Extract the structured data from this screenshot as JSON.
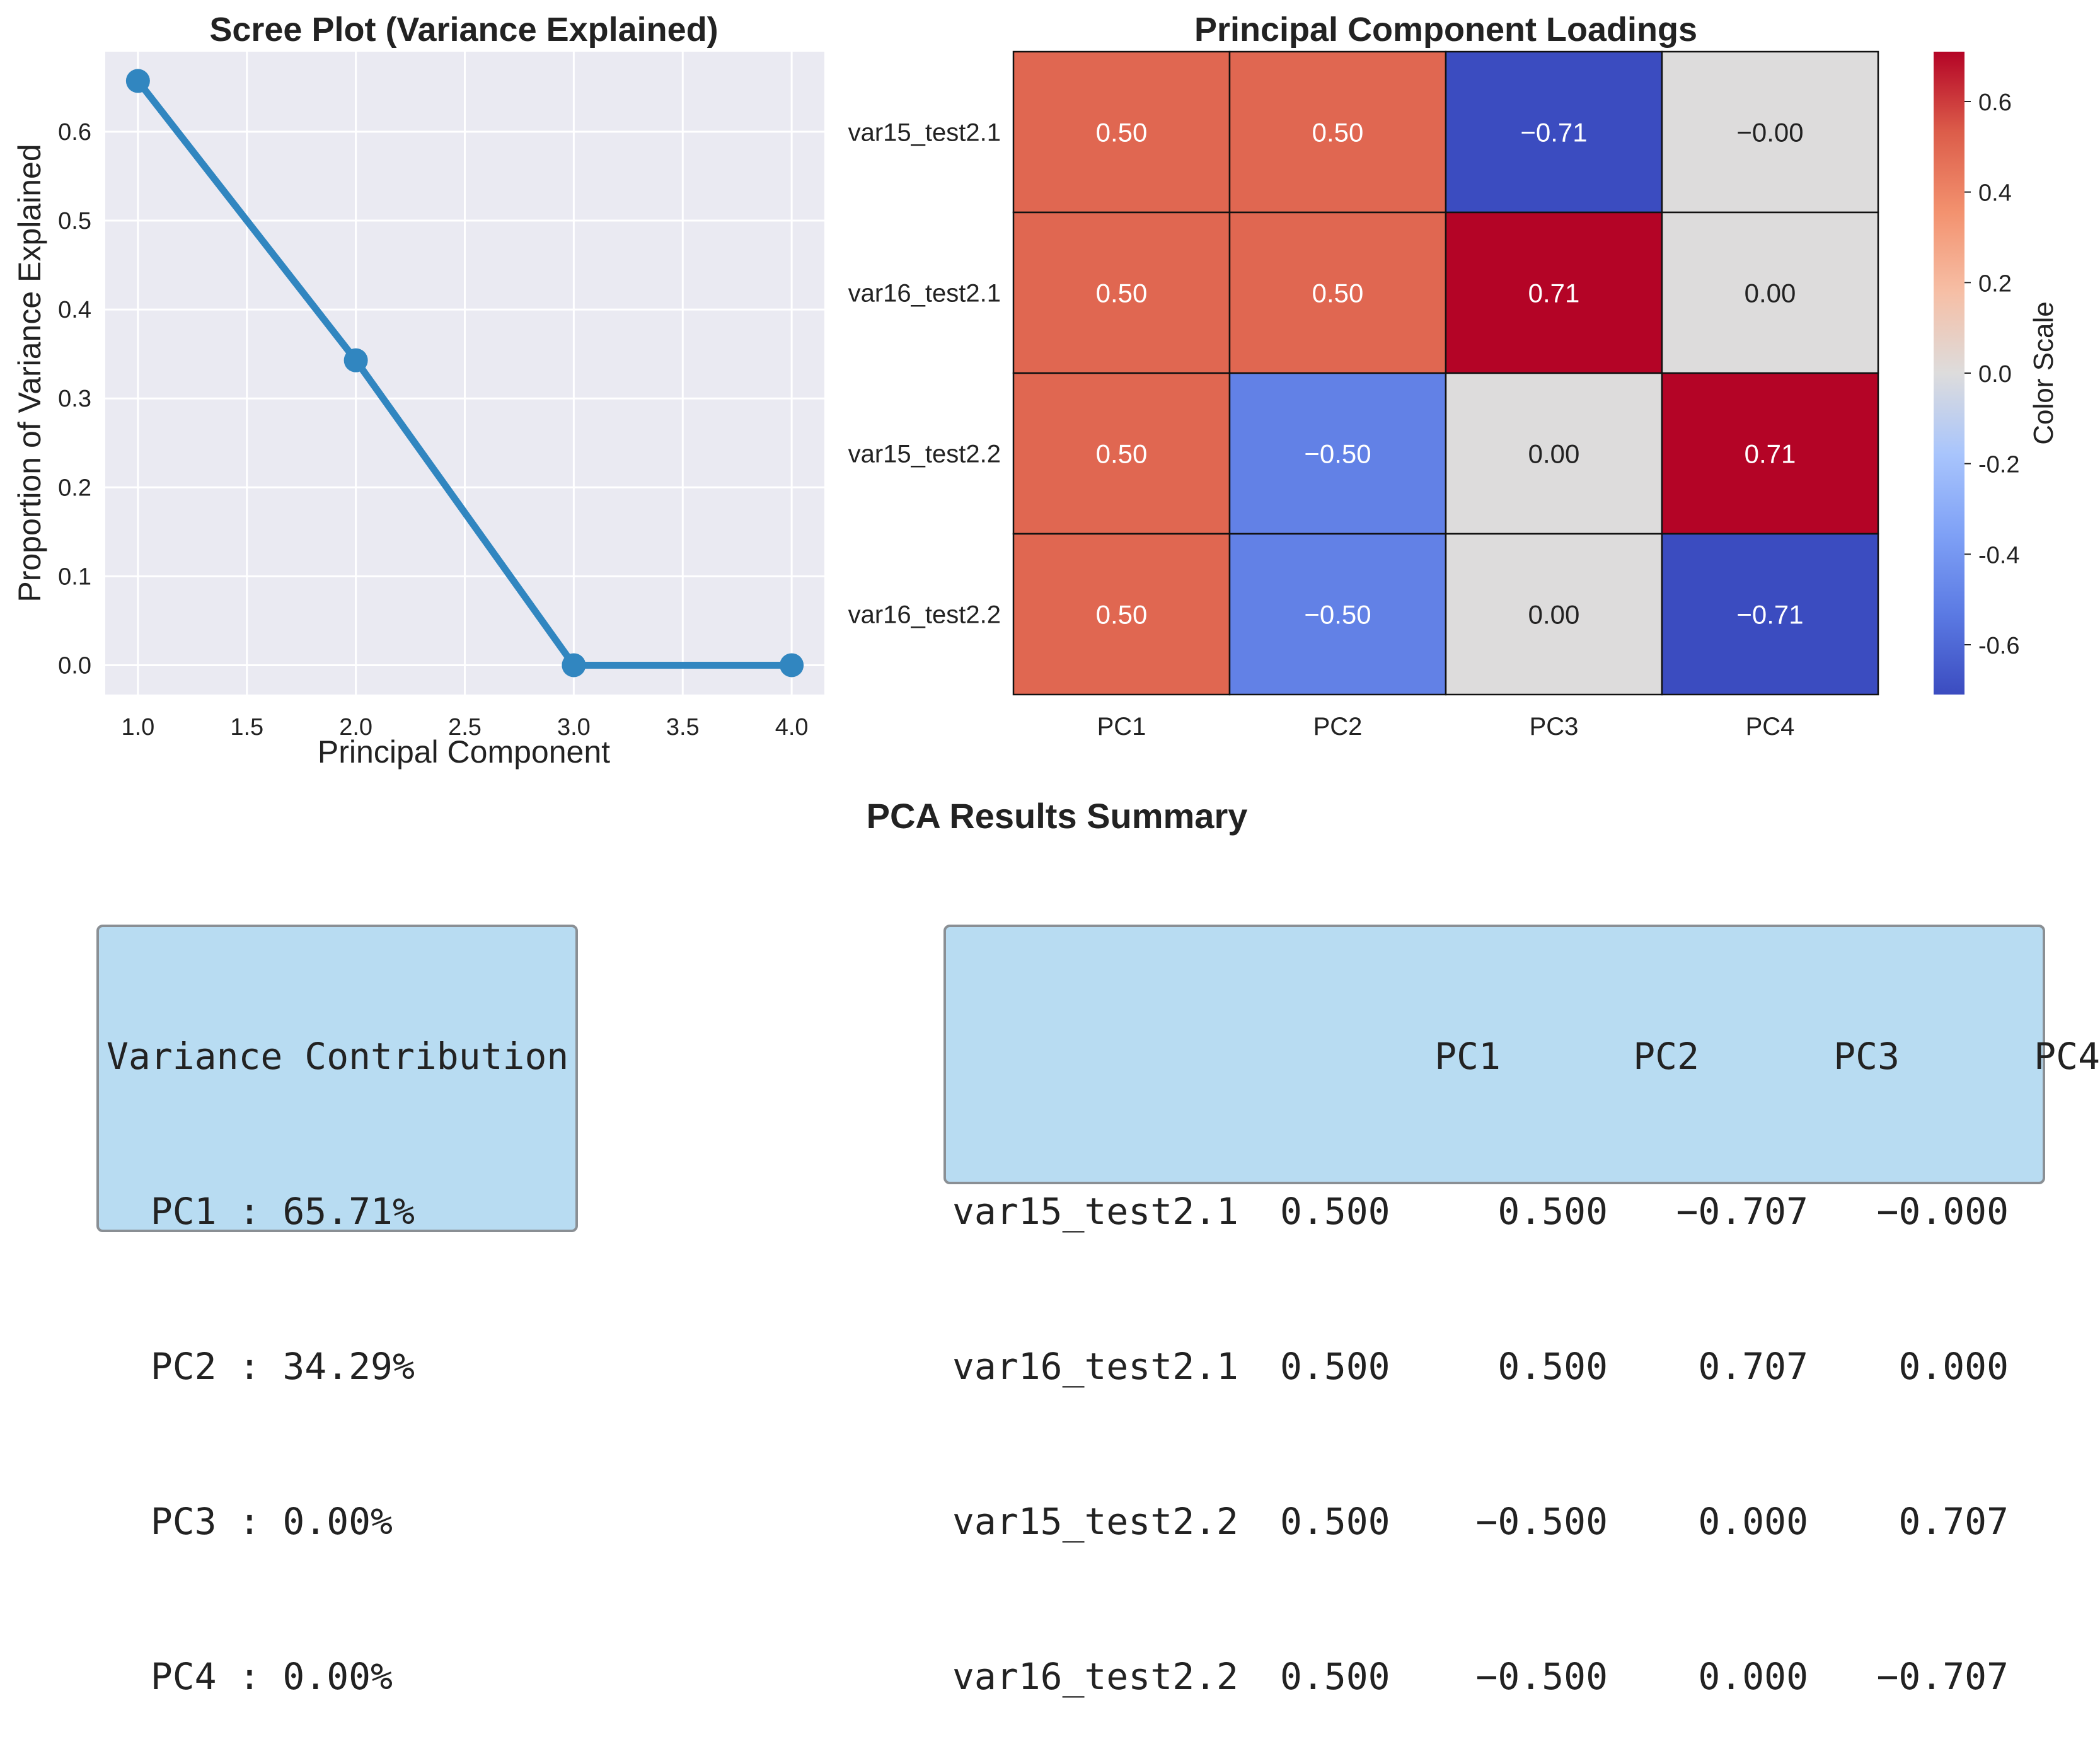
{
  "scree": {
    "title": "Scree Plot (Variance Explained)",
    "xlabel": "Principal Component",
    "ylabel": "Proportion of Variance Explained",
    "x_ticks": [
      "1.0",
      "1.5",
      "2.0",
      "2.5",
      "3.0",
      "3.5",
      "4.0"
    ],
    "y_ticks": [
      "0.0",
      "0.1",
      "0.2",
      "0.3",
      "0.4",
      "0.5",
      "0.6"
    ]
  },
  "heatmap": {
    "title": "Principal Component Loadings",
    "colorbar_label": "Color Scale",
    "colorbar_ticks": [
      "0.6",
      "0.4",
      "0.2",
      "0.0",
      "-0.2",
      "-0.4",
      "-0.6"
    ]
  },
  "summary": {
    "title": "PCA Results Summary",
    "variance_box": {
      "heading": "Variance Contribution",
      "lines": [
        "  PC1 : 65.71%",
        "  PC2 : 34.29%",
        "  PC3 : 0.00%",
        "  PC4 : 0.00%"
      ]
    },
    "loadings_box": {
      "header": [
        "PC1",
        "PC2",
        "PC3",
        "PC4"
      ],
      "rows": [
        {
          "label": "var15_test2.1",
          "values": [
            "0.500",
            "0.500",
            "−0.707",
            "−0.000"
          ]
        },
        {
          "label": "var16_test2.1",
          "values": [
            "0.500",
            "0.500",
            "0.707",
            "0.000"
          ]
        },
        {
          "label": "var15_test2.2",
          "values": [
            "0.500",
            "−0.500",
            "0.000",
            "0.707"
          ]
        },
        {
          "label": "var16_test2.2",
          "values": [
            "0.500",
            "−0.500",
            "0.000",
            "−0.707"
          ]
        }
      ]
    }
  },
  "chart_data": [
    {
      "type": "line",
      "title": "Scree Plot (Variance Explained)",
      "xlabel": "Principal Component",
      "ylabel": "Proportion of Variance Explained",
      "x": [
        1,
        2,
        3,
        4
      ],
      "y": [
        0.6571,
        0.3429,
        0.0,
        0.0
      ],
      "xlim": [
        0.85,
        4.15
      ],
      "ylim": [
        -0.033,
        0.69
      ],
      "grid": true,
      "color": "#3186c0"
    },
    {
      "type": "heatmap",
      "title": "Principal Component Loadings",
      "rows": [
        "var15_test2.1",
        "var16_test2.1",
        "var15_test2.2",
        "var16_test2.2"
      ],
      "columns": [
        "PC1",
        "PC2",
        "PC3",
        "PC4"
      ],
      "values": [
        [
          0.5,
          0.5,
          -0.71,
          -0.0
        ],
        [
          0.5,
          0.5,
          0.71,
          0.0
        ],
        [
          0.5,
          -0.5,
          0.0,
          0.71
        ],
        [
          0.5,
          -0.5,
          0.0,
          -0.71
        ]
      ],
      "labels": [
        [
          "0.50",
          "0.50",
          "−0.71",
          "−0.00"
        ],
        [
          "0.50",
          "0.50",
          "0.71",
          "0.00"
        ],
        [
          "0.50",
          "−0.50",
          "0.00",
          "0.71"
        ],
        [
          "0.50",
          "−0.50",
          "0.00",
          "−0.71"
        ]
      ],
      "colormap": "coolwarm",
      "vmin": -0.71,
      "vmax": 0.71,
      "colorbar_label": "Color Scale",
      "colorbar_ticks": [
        0.6,
        0.4,
        0.2,
        0.0,
        -0.2,
        -0.4,
        -0.6
      ]
    }
  ]
}
